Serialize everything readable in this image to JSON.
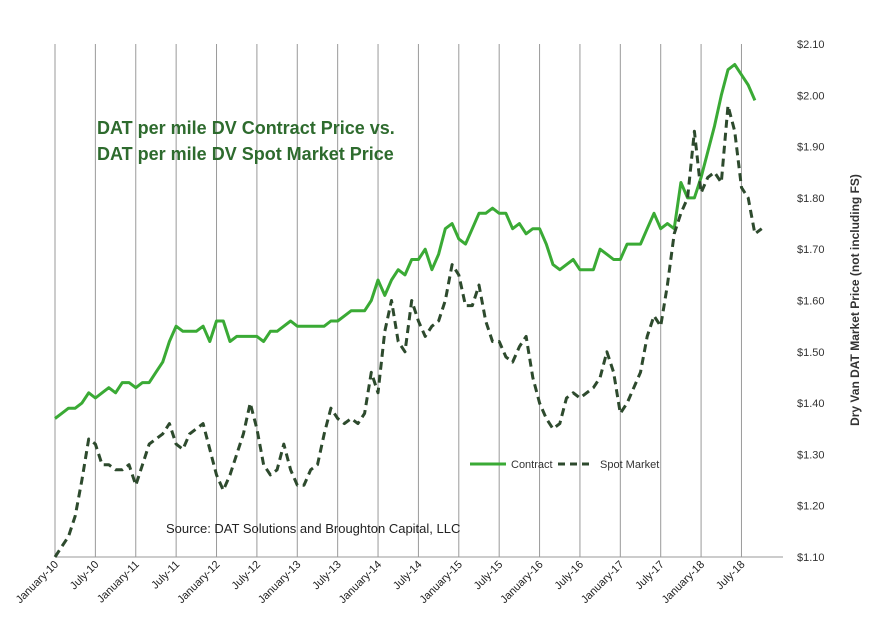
{
  "chart_data": {
    "type": "line",
    "title_lines": [
      "DAT per mile DV Contract Price vs.",
      "DAT per mile DV Spot Market Price"
    ],
    "xlabel": "",
    "ylabel": "Dry Van DAT Market Price (not including FS)",
    "ylim": [
      1.1,
      2.1
    ],
    "yticks": [
      1.1,
      1.2,
      1.3,
      1.4,
      1.5,
      1.6,
      1.7,
      1.8,
      1.9,
      2.0,
      2.1
    ],
    "ytick_labels": [
      "$1.10",
      "$1.20",
      "$1.30",
      "$1.40",
      "$1.50",
      "$1.60",
      "$1.70",
      "$1.80",
      "$1.90",
      "$2.00",
      "$2.10"
    ],
    "y_axis_side": "right",
    "grid": "vertical",
    "x_start": "2010-01",
    "xticks": [
      "January-10",
      "July-10",
      "January-11",
      "July-11",
      "January-12",
      "July-12",
      "January-13",
      "July-13",
      "January-14",
      "July-14",
      "January-15",
      "July-15",
      "January-16",
      "July-16",
      "January-17",
      "July-17",
      "January-18",
      "July-18"
    ],
    "legend_position": "middle-right",
    "annotation": "Source: DAT Solutions and Broughton Capital, LLC",
    "series": [
      {
        "name": "Contract",
        "style": "solid",
        "color": "#3aaa35",
        "values": [
          1.37,
          1.38,
          1.39,
          1.39,
          1.4,
          1.42,
          1.41,
          1.42,
          1.43,
          1.42,
          1.44,
          1.44,
          1.43,
          1.44,
          1.44,
          1.46,
          1.48,
          1.52,
          1.55,
          1.54,
          1.54,
          1.54,
          1.55,
          1.52,
          1.56,
          1.56,
          1.52,
          1.53,
          1.53,
          1.53,
          1.53,
          1.52,
          1.54,
          1.54,
          1.55,
          1.56,
          1.55,
          1.55,
          1.55,
          1.55,
          1.55,
          1.56,
          1.56,
          1.57,
          1.58,
          1.58,
          1.58,
          1.6,
          1.64,
          1.61,
          1.64,
          1.66,
          1.65,
          1.68,
          1.68,
          1.7,
          1.66,
          1.69,
          1.74,
          1.75,
          1.72,
          1.71,
          1.74,
          1.77,
          1.77,
          1.78,
          1.77,
          1.77,
          1.74,
          1.75,
          1.73,
          1.74,
          1.74,
          1.71,
          1.67,
          1.66,
          1.67,
          1.68,
          1.66,
          1.66,
          1.66,
          1.7,
          1.69,
          1.68,
          1.68,
          1.71,
          1.71,
          1.71,
          1.74,
          1.77,
          1.74,
          1.75,
          1.74,
          1.83,
          1.8,
          1.8,
          1.84,
          1.89,
          1.94,
          2.0,
          2.05,
          2.06,
          2.04,
          2.02,
          1.99
        ]
      },
      {
        "name": "Spot Market",
        "style": "dashed",
        "color": "#2d4a2d",
        "values": [
          1.1,
          1.12,
          1.14,
          1.18,
          1.25,
          1.33,
          1.32,
          1.28,
          1.28,
          1.27,
          1.27,
          1.28,
          1.24,
          1.28,
          1.32,
          1.33,
          1.34,
          1.36,
          1.32,
          1.31,
          1.34,
          1.35,
          1.36,
          1.31,
          1.26,
          1.23,
          1.26,
          1.3,
          1.34,
          1.4,
          1.35,
          1.28,
          1.26,
          1.27,
          1.32,
          1.27,
          1.24,
          1.24,
          1.27,
          1.28,
          1.34,
          1.39,
          1.37,
          1.36,
          1.37,
          1.36,
          1.38,
          1.46,
          1.42,
          1.54,
          1.6,
          1.52,
          1.5,
          1.6,
          1.56,
          1.53,
          1.55,
          1.56,
          1.6,
          1.67,
          1.65,
          1.59,
          1.59,
          1.63,
          1.56,
          1.52,
          1.52,
          1.49,
          1.48,
          1.51,
          1.53,
          1.45,
          1.4,
          1.37,
          1.35,
          1.36,
          1.41,
          1.42,
          1.41,
          1.42,
          1.43,
          1.45,
          1.5,
          1.46,
          1.38,
          1.4,
          1.43,
          1.46,
          1.53,
          1.57,
          1.55,
          1.63,
          1.73,
          1.77,
          1.8,
          1.93,
          1.81,
          1.84,
          1.85,
          1.83,
          1.98,
          1.93,
          1.82,
          1.8,
          1.73,
          1.74
        ]
      }
    ]
  }
}
